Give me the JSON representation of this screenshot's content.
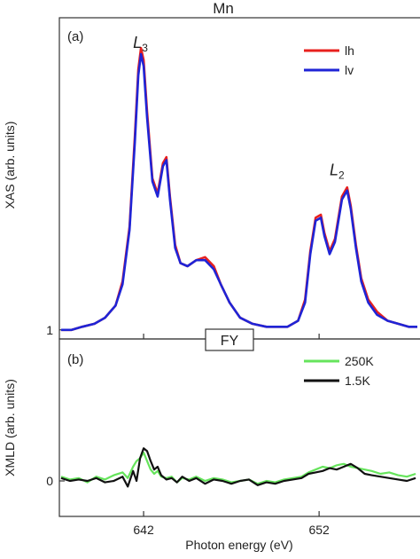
{
  "title": "Mn",
  "chart_data": [
    {
      "panel_label": "(a)",
      "type": "line",
      "ylabel": "XAS (arb. units)",
      "xlim": [
        637.2,
        657.8
      ],
      "ylim": [
        0.97,
        2.03
      ],
      "yticks": [
        1
      ],
      "ytick_labels": [
        "1"
      ],
      "legend_position": "top-right",
      "annotations": [
        {
          "text": "L",
          "sub": "3",
          "x": 641.4,
          "y": 1.93
        },
        {
          "text": "L",
          "sub": "2",
          "x": 652.6,
          "y": 1.51
        }
      ],
      "x": [
        637.3,
        637.9,
        638.5,
        639.2,
        639.8,
        640.4,
        640.8,
        641.2,
        641.5,
        641.7,
        641.85,
        642.0,
        642.2,
        642.5,
        642.8,
        643.1,
        643.3,
        643.5,
        643.8,
        644.1,
        644.5,
        645.0,
        645.5,
        646.0,
        646.4,
        646.9,
        647.5,
        648.2,
        649.0,
        649.6,
        650.2,
        650.8,
        651.2,
        651.5,
        651.8,
        652.1,
        652.3,
        652.6,
        652.9,
        653.3,
        653.6,
        653.8,
        654.1,
        654.4,
        654.8,
        655.3,
        655.9,
        656.5,
        657.1,
        657.6
      ],
      "series": [
        {
          "name": "lh",
          "color": "#e8201e",
          "values": [
            1.0,
            1.0,
            1.01,
            1.02,
            1.04,
            1.08,
            1.16,
            1.34,
            1.64,
            1.86,
            1.93,
            1.89,
            1.72,
            1.5,
            1.45,
            1.55,
            1.57,
            1.44,
            1.28,
            1.22,
            1.21,
            1.23,
            1.24,
            1.21,
            1.15,
            1.09,
            1.04,
            1.02,
            1.01,
            1.01,
            1.01,
            1.03,
            1.1,
            1.26,
            1.37,
            1.38,
            1.32,
            1.26,
            1.3,
            1.44,
            1.47,
            1.41,
            1.28,
            1.17,
            1.1,
            1.06,
            1.03,
            1.02,
            1.01,
            1.01
          ]
        },
        {
          "name": "lv",
          "color": "#1f24d6",
          "values": [
            1.0,
            1.0,
            1.01,
            1.02,
            1.04,
            1.08,
            1.15,
            1.33,
            1.62,
            1.84,
            1.91,
            1.87,
            1.7,
            1.49,
            1.44,
            1.54,
            1.56,
            1.43,
            1.27,
            1.22,
            1.21,
            1.23,
            1.23,
            1.2,
            1.15,
            1.09,
            1.04,
            1.02,
            1.01,
            1.01,
            1.01,
            1.03,
            1.09,
            1.25,
            1.36,
            1.37,
            1.31,
            1.25,
            1.29,
            1.43,
            1.46,
            1.4,
            1.27,
            1.16,
            1.09,
            1.05,
            1.03,
            1.02,
            1.01,
            1.01
          ]
        }
      ]
    },
    {
      "panel_label": "(b)",
      "inset_label": "FY",
      "type": "line",
      "xlabel": "Photon energy (eV)",
      "ylabel": "XMLD (arb. units)",
      "xlim": [
        637.2,
        657.8
      ],
      "ylim": [
        -0.25,
        1.0
      ],
      "yticks": [
        0
      ],
      "ytick_labels": [
        "0"
      ],
      "xticks": [
        642,
        652
      ],
      "xtick_labels": [
        "642",
        "652"
      ],
      "legend_position": "top-right",
      "x": [
        637.3,
        637.8,
        638.3,
        638.8,
        639.3,
        639.8,
        640.3,
        640.8,
        641.1,
        641.4,
        641.6,
        641.8,
        642.0,
        642.2,
        642.4,
        642.6,
        642.8,
        643.0,
        643.3,
        643.6,
        643.9,
        644.2,
        644.6,
        645.0,
        645.5,
        646.0,
        646.5,
        647.0,
        647.5,
        648.0,
        648.5,
        649.0,
        649.5,
        650.0,
        650.5,
        651.0,
        651.4,
        651.8,
        652.2,
        652.6,
        653.0,
        653.4,
        653.8,
        654.2,
        654.6,
        655.0,
        655.5,
        656.0,
        656.5,
        657.0,
        657.5
      ],
      "series": [
        {
          "name": "250K",
          "color": "#66e45c",
          "values": [
            0.03,
            0.01,
            0.02,
            -0.01,
            0.03,
            0.01,
            0.04,
            0.06,
            0.02,
            0.1,
            0.14,
            0.16,
            0.2,
            0.14,
            0.08,
            0.05,
            0.07,
            0.03,
            0.02,
            0.03,
            -0.01,
            0.02,
            0.01,
            0.03,
            0.0,
            0.02,
            0.01,
            -0.01,
            0.0,
            0.01,
            -0.02,
            0.0,
            -0.01,
            0.01,
            0.02,
            0.03,
            0.06,
            0.08,
            0.1,
            0.09,
            0.11,
            0.12,
            0.1,
            0.09,
            0.08,
            0.07,
            0.05,
            0.06,
            0.04,
            0.03,
            0.05
          ]
        },
        {
          "name": "1.5K",
          "color": "#111111",
          "values": [
            0.02,
            0.0,
            0.01,
            0.0,
            0.02,
            -0.01,
            0.0,
            0.03,
            -0.04,
            0.07,
            0.0,
            0.16,
            0.23,
            0.21,
            0.14,
            0.08,
            0.1,
            0.04,
            0.01,
            0.02,
            -0.01,
            0.03,
            0.0,
            0.02,
            -0.02,
            0.01,
            0.0,
            -0.02,
            0.0,
            0.01,
            -0.03,
            -0.01,
            -0.02,
            0.0,
            0.01,
            0.02,
            0.05,
            0.06,
            0.07,
            0.09,
            0.08,
            0.1,
            0.12,
            0.09,
            0.05,
            0.04,
            0.03,
            0.02,
            0.01,
            0.0,
            0.02
          ]
        }
      ]
    }
  ]
}
